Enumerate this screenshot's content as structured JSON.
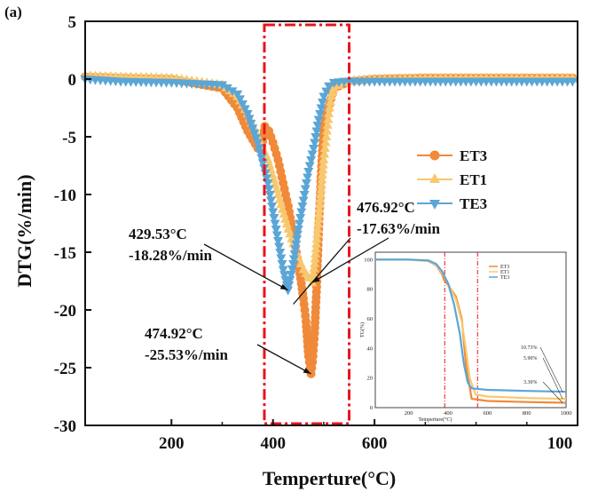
{
  "panel_label": "(a)",
  "chart_data": {
    "type": "scatter",
    "xlabel": "Temperture(°C)",
    "ylabel": "DTG(%/min)",
    "xlim": [
      30,
      1000
    ],
    "ylim": [
      -30,
      5
    ],
    "x_ticks": [
      "200",
      "400",
      "600",
      "100"
    ],
    "y_ticks": [
      "5",
      "0",
      "-5",
      "-10",
      "-15",
      "-20",
      "-25",
      "-30"
    ],
    "legend_position": "right-middle",
    "highlight_region": [
      383,
      550
    ],
    "series": [
      {
        "name": "ET3",
        "color": "#F08A3A",
        "marker": "circle",
        "x": [
          30,
          100,
          200,
          300,
          330,
          350,
          370,
          378,
          384,
          392,
          400,
          410,
          420,
          430,
          440,
          450,
          460,
          465,
          470,
          474.92,
          478,
          482,
          486,
          490,
          495,
          500,
          520,
          550,
          600,
          700,
          800,
          900,
          1000
        ],
        "y": [
          0.2,
          0.1,
          0,
          -0.8,
          -2.5,
          -4.5,
          -6,
          -5.8,
          -4.1,
          -4.5,
          -5.5,
          -7,
          -9,
          -11,
          -13.5,
          -16,
          -19,
          -21,
          -24,
          -25.53,
          -24.5,
          -22,
          -18,
          -13,
          -8,
          -4,
          -0.8,
          -0.2,
          0,
          0.1,
          0.1,
          0.1,
          0.1
        ]
      },
      {
        "name": "ET1",
        "color": "#F8C870",
        "marker": "triangle-up",
        "x": [
          30,
          100,
          200,
          300,
          330,
          350,
          370,
          390,
          410,
          430,
          450,
          460,
          470,
          476.92,
          482,
          488,
          494,
          500,
          505,
          510,
          515,
          520,
          540,
          560,
          600,
          700,
          800,
          900,
          1000
        ],
        "y": [
          0.3,
          0.2,
          0.1,
          -0.5,
          -1.5,
          -3,
          -5,
          -7,
          -10,
          -13,
          -15.5,
          -16.5,
          -17.2,
          -17.63,
          -16,
          -13,
          -10,
          -7,
          -5,
          -3,
          -1.5,
          -0.8,
          -0.3,
          -0.1,
          0,
          0.1,
          0.1,
          0.1,
          0.1
        ]
      },
      {
        "name": "TE3",
        "color": "#5BA6D6",
        "marker": "triangle-down",
        "x": [
          30,
          100,
          200,
          300,
          330,
          350,
          370,
          390,
          400,
          410,
          420,
          429.53,
          440,
          450,
          460,
          470,
          480,
          490,
          500,
          510,
          520,
          540,
          560,
          600,
          700,
          800,
          900,
          1000
        ],
        "y": [
          0,
          -0.2,
          -0.3,
          -0.5,
          -1.3,
          -3,
          -5.5,
          -9,
          -11.5,
          -14,
          -16.5,
          -18.28,
          -16,
          -13,
          -10.5,
          -8,
          -6,
          -3.5,
          -1.5,
          -0.6,
          -0.3,
          -0.2,
          -0.2,
          -0.2,
          -0.2,
          -0.2,
          -0.2,
          -0.2
        ]
      }
    ],
    "annotations": [
      {
        "lines": [
          "429.53°C",
          "-18.28%/min"
        ],
        "target": [
          429.53,
          -18.28
        ]
      },
      {
        "lines": [
          "476.92°C",
          "-17.63%/min"
        ],
        "target": [
          476.92,
          -17.63
        ]
      },
      {
        "lines": [
          "474.92°C",
          "-25.53%/min"
        ],
        "target": [
          474.92,
          -25.53
        ]
      }
    ],
    "inset": {
      "type": "line",
      "xlabel": "Temperture(°C)",
      "ylabel": "TG(%)",
      "xlim": [
        30,
        1000
      ],
      "ylim": [
        0,
        105
      ],
      "x_ticks": [
        "200",
        "400",
        "600",
        "800",
        "1000"
      ],
      "y_ticks": [
        "0",
        "20",
        "40",
        "60",
        "80",
        "100"
      ],
      "vlines": [
        383,
        550
      ],
      "legend": [
        "ET3",
        "ET1",
        "TE3"
      ],
      "labels": [
        "10.73%",
        "5.90%",
        "3.30%"
      ],
      "series": [
        {
          "name": "ET3",
          "color": "#F08A3A",
          "x": [
            30,
            200,
            300,
            340,
            370,
            380,
            400,
            440,
            470,
            490,
            520,
            600,
            800,
            1000
          ],
          "y": [
            100,
            100,
            99,
            96,
            90,
            86,
            83,
            75,
            60,
            30,
            6,
            4.5,
            3.8,
            3.3
          ]
        },
        {
          "name": "ET1",
          "color": "#F8C870",
          "x": [
            30,
            200,
            300,
            340,
            370,
            400,
            440,
            470,
            490,
            510,
            540,
            600,
            800,
            1000
          ],
          "y": [
            100,
            100,
            99,
            96,
            91,
            84,
            73,
            58,
            40,
            20,
            9,
            7.5,
            6.5,
            5.9
          ]
        },
        {
          "name": "TE3",
          "color": "#5BA6D6",
          "x": [
            30,
            200,
            300,
            340,
            370,
            400,
            430,
            460,
            480,
            500,
            520,
            600,
            800,
            1000
          ],
          "y": [
            100,
            100,
            99.5,
            97,
            92,
            84,
            70,
            50,
            30,
            17,
            13,
            12,
            11.3,
            10.73
          ]
        }
      ]
    }
  }
}
